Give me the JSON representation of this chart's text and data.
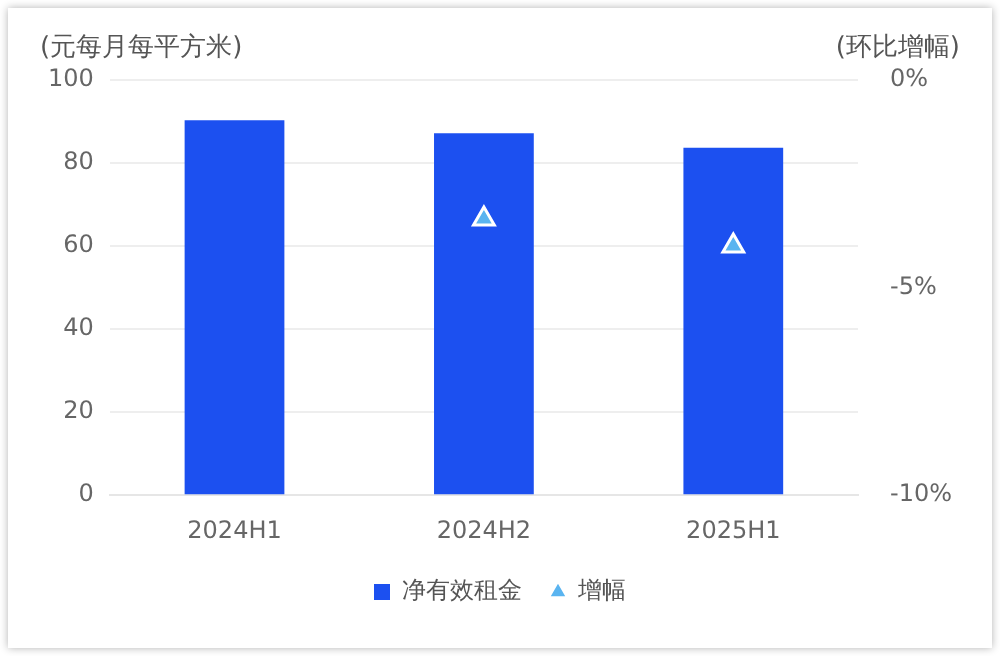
{
  "chart_data": {
    "type": "bar",
    "ylabel": "(元每月每平方米)",
    "y2label": "(环比增幅)",
    "categories": [
      "2024H1",
      "2024H2",
      "2025H1"
    ],
    "series": [
      {
        "name": "净有效租金",
        "color": "#1c50f0",
        "values": [
          90.3,
          87.2,
          83.7
        ]
      },
      {
        "name": "增幅",
        "type": "scatter",
        "axis": "y2",
        "color": "#5ab4f0",
        "marker": "triangle",
        "values": [
          null,
          -3.35,
          -4.0
        ]
      }
    ],
    "ylim": [
      0,
      100
    ],
    "yticks": [
      0,
      20,
      40,
      60,
      80,
      100
    ],
    "y2lim": [
      -10,
      0
    ],
    "y2ticks": [
      {
        "value": -10,
        "label": "-10%"
      },
      {
        "value": -5,
        "label": "-5%"
      },
      {
        "value": 0,
        "label": "0%"
      }
    ],
    "grid": "y",
    "legend": "bottom"
  }
}
